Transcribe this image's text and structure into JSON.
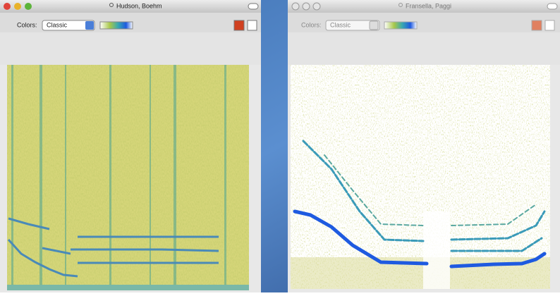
{
  "windows": [
    {
      "title": "Hudson, Boehm",
      "colors_label": "Colors:",
      "colors_value": "Classic"
    },
    {
      "title": "Fransella, Paggi",
      "colors_label": "Colors:",
      "colors_value": "Classic"
    }
  ]
}
